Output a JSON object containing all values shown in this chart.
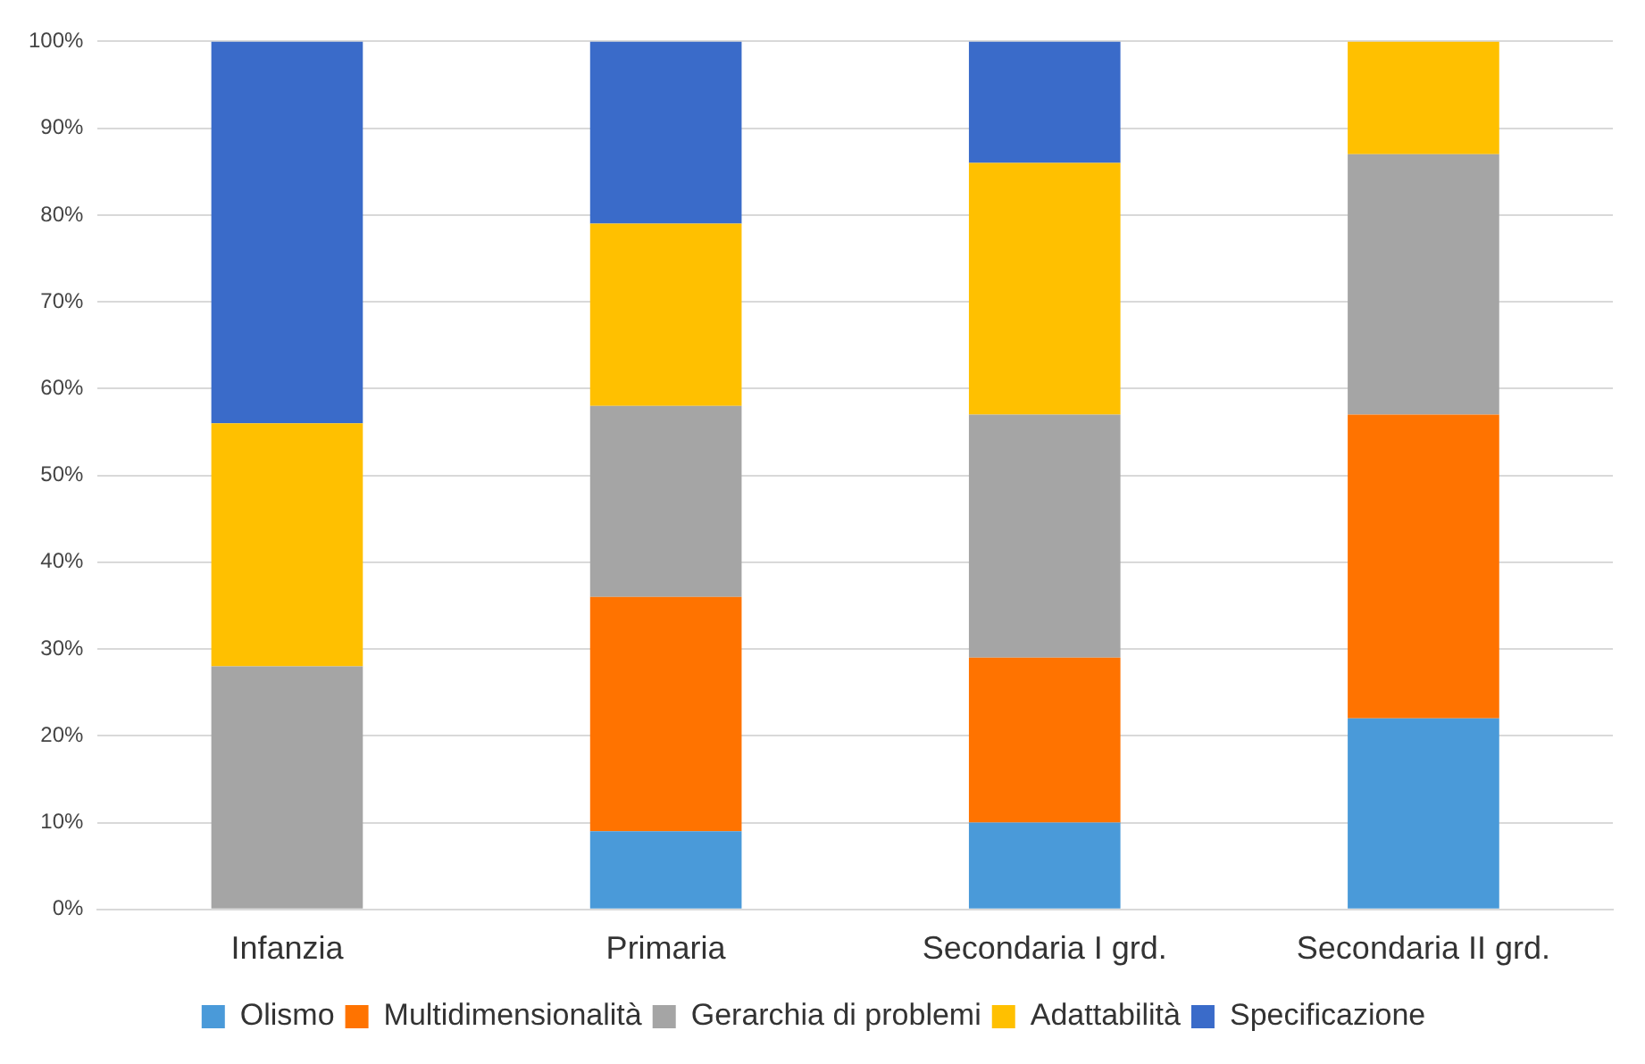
{
  "chart_data": {
    "type": "bar",
    "stacked": true,
    "categories": [
      "Infanzia",
      "Primaria",
      "Secondaria I grd.",
      "Secondaria II grd."
    ],
    "series": [
      {
        "name": "Olismo",
        "color": "#4a9ad9",
        "values": [
          0,
          9,
          10,
          22
        ]
      },
      {
        "name": "Multidimensionalità",
        "color": "#ff7300",
        "values": [
          0,
          27,
          19,
          35
        ]
      },
      {
        "name": "Gerarchia di problemi",
        "color": "#a5a5a5",
        "values": [
          28,
          22,
          28,
          30
        ]
      },
      {
        "name": "Adattabilità",
        "color": "#ffc000",
        "values": [
          28,
          21,
          29,
          13
        ]
      },
      {
        "name": "Specificazione",
        "color": "#3a6bc9",
        "values": [
          44,
          21,
          14,
          0
        ]
      }
    ],
    "ylim": [
      0,
      100
    ],
    "yticks": [
      {
        "value": 0,
        "label": "0%"
      },
      {
        "value": 10,
        "label": "10%"
      },
      {
        "value": 20,
        "label": "20%"
      },
      {
        "value": 30,
        "label": "30%"
      },
      {
        "value": 40,
        "label": "40%"
      },
      {
        "value": 50,
        "label": "50%"
      },
      {
        "value": 60,
        "label": "60%"
      },
      {
        "value": 70,
        "label": "70%"
      },
      {
        "value": 80,
        "label": "80%"
      },
      {
        "value": 90,
        "label": "90%"
      },
      {
        "value": 100,
        "label": "100%"
      }
    ],
    "grid": "y",
    "legend": "bottom"
  }
}
